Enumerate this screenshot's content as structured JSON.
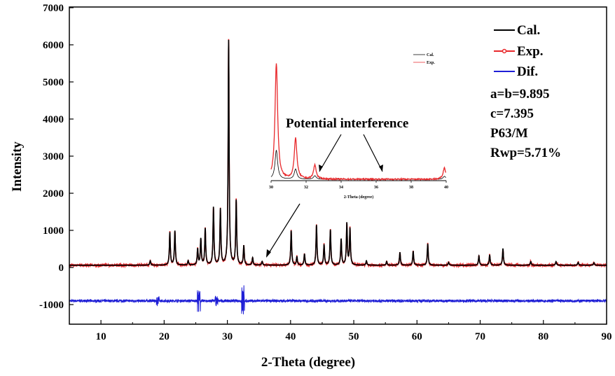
{
  "chart_data": {
    "type": "line",
    "title": "",
    "xlabel": "2-Theta (degree)",
    "ylabel": "Intensity",
    "xlim": [
      5,
      90
    ],
    "ylim": [
      -1600,
      7000
    ],
    "xticks": [
      10,
      20,
      30,
      40,
      50,
      60,
      70,
      80,
      90
    ],
    "yticks": [
      -1000,
      0,
      1000,
      2000,
      3000,
      4000,
      5000,
      6000,
      7000
    ],
    "xtick_labels": [
      "10",
      "20",
      "30",
      "40",
      "50",
      "60",
      "70",
      "80",
      "90"
    ],
    "ytick_labels": [
      "-1000",
      "0",
      "1000",
      "2000",
      "3000",
      "4000",
      "5000",
      "6000",
      "7000"
    ],
    "baseline": 60,
    "dif_offset": -900,
    "peaks": [
      [
        17.8,
        120
      ],
      [
        20.9,
        880
      ],
      [
        21.7,
        920
      ],
      [
        23.8,
        120
      ],
      [
        25.3,
        430
      ],
      [
        25.8,
        700
      ],
      [
        26.5,
        980
      ],
      [
        27.8,
        1550
      ],
      [
        28.9,
        1500
      ],
      [
        30.2,
        6050
      ],
      [
        31.4,
        1730
      ],
      [
        32.6,
        520
      ],
      [
        34.0,
        200
      ],
      [
        35.5,
        100
      ],
      [
        40.1,
        930
      ],
      [
        41.0,
        230
      ],
      [
        42.2,
        300
      ],
      [
        44.1,
        1080
      ],
      [
        45.3,
        550
      ],
      [
        46.3,
        950
      ],
      [
        48.0,
        700
      ],
      [
        48.9,
        1120
      ],
      [
        49.4,
        980
      ],
      [
        52.0,
        120
      ],
      [
        55.2,
        100
      ],
      [
        57.3,
        350
      ],
      [
        59.4,
        380
      ],
      [
        61.7,
        580
      ],
      [
        65.0,
        80
      ],
      [
        69.8,
        250
      ],
      [
        71.5,
        280
      ],
      [
        73.6,
        450
      ],
      [
        78.0,
        100
      ],
      [
        82.0,
        100
      ],
      [
        85.5,
        80
      ],
      [
        88.0,
        70
      ]
    ],
    "series": [
      {
        "name": "Cal.",
        "color": "#000000"
      },
      {
        "name": "Exp.",
        "color": "#e8282b"
      },
      {
        "name": "Dif.",
        "color": "#1f1fd6"
      }
    ],
    "legend_position": "top-right",
    "info": [
      "a=b=9.895",
      "c=7.395",
      "P63/M",
      "Rwp=5.71%"
    ],
    "annotation": "Potential interference",
    "inset": {
      "xlabel": "2-Theta (degree)",
      "xlim": [
        30,
        40
      ],
      "xtick_labels": [
        "30",
        "32",
        "34",
        "36",
        "38",
        "40"
      ],
      "legend": [
        "Cal.",
        "Exp."
      ],
      "peaks": [
        [
          30.3,
          1.0
        ],
        [
          31.4,
          0.35
        ],
        [
          32.5,
          0.12
        ],
        [
          39.9,
          0.1
        ]
      ]
    }
  }
}
